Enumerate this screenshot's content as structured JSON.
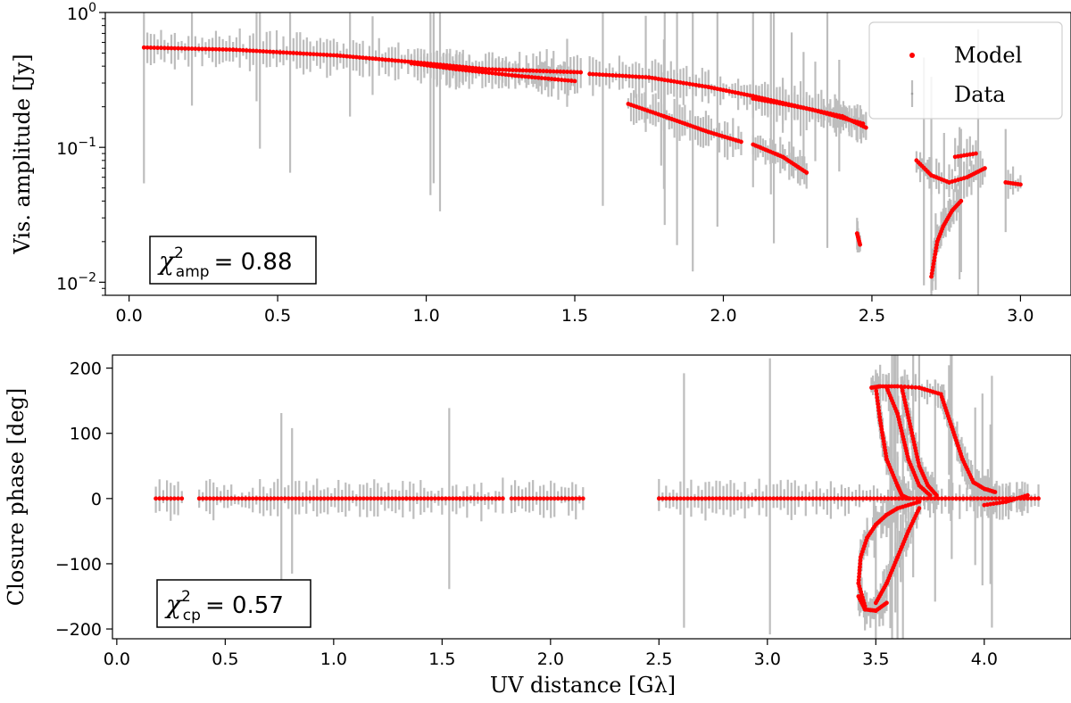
{
  "chart_data": [
    {
      "type": "scatter",
      "panel": "top",
      "xlabel": "",
      "ylabel": "Vis. amplitude [Jy]",
      "yscale": "log",
      "xlim": [
        -0.08,
        3.17
      ],
      "ylim": [
        0.008,
        1.0
      ],
      "xticks": [
        0.0,
        0.5,
        1.0,
        1.5,
        2.0,
        2.5,
        3.0
      ],
      "xtick_labels": [
        "0.0",
        "0.5",
        "1.0",
        "1.5",
        "2.0",
        "2.5",
        "3.0"
      ],
      "ytick_labels": [
        {
          "value": 1.0,
          "base": "10",
          "exp": "0"
        },
        {
          "value": 0.1,
          "base": "10",
          "exp": "−1"
        },
        {
          "value": 0.01,
          "base": "10",
          "exp": "−2"
        }
      ],
      "legend": {
        "placement": "top-right",
        "entries": [
          "Model",
          "Data"
        ]
      },
      "annotation": {
        "symbol": "χ",
        "sup": "2",
        "sub": "amp",
        "value": "= 0.88"
      },
      "series": [
        {
          "name": "Model",
          "color": "#ff0000",
          "segments": [
            {
              "x": [
                0.05,
                0.35,
                0.7,
                0.95,
                1.2,
                1.52
              ],
              "y": [
                0.55,
                0.53,
                0.48,
                0.43,
                0.38,
                0.36
              ]
            },
            {
              "x": [
                0.95,
                1.1,
                1.3,
                1.5
              ],
              "y": [
                0.42,
                0.38,
                0.34,
                0.31
              ]
            },
            {
              "x": [
                1.55,
                1.75,
                1.95,
                2.1,
                2.3,
                2.47
              ],
              "y": [
                0.35,
                0.33,
                0.28,
                0.24,
                0.19,
                0.15
              ]
            },
            {
              "x": [
                2.1,
                2.2,
                2.3,
                2.4,
                2.48
              ],
              "y": [
                0.23,
                0.21,
                0.19,
                0.17,
                0.14
              ]
            },
            {
              "x": [
                1.68,
                1.8,
                1.95,
                2.06
              ],
              "y": [
                0.21,
                0.17,
                0.13,
                0.11
              ]
            },
            {
              "x": [
                2.1,
                2.2,
                2.28
              ],
              "y": [
                0.105,
                0.085,
                0.065
              ]
            },
            {
              "x": [
                2.7,
                2.72,
                2.74,
                2.77,
                2.8
              ],
              "y": [
                0.011,
                0.02,
                0.026,
                0.034,
                0.04
              ]
            },
            {
              "x": [
                2.65,
                2.7,
                2.76,
                2.82,
                2.88
              ],
              "y": [
                0.08,
                0.062,
                0.055,
                0.06,
                0.07
              ]
            },
            {
              "x": [
                2.78,
                2.85
              ],
              "y": [
                0.085,
                0.09
              ]
            },
            {
              "x": [
                2.95,
                3.0
              ],
              "y": [
                0.055,
                0.053
              ]
            },
            {
              "x": [
                2.45,
                2.46
              ],
              "y": [
                0.023,
                0.019
              ]
            }
          ]
        },
        {
          "name": "Data",
          "color": "#bdbdbd",
          "note": "grey error bars around model points"
        }
      ]
    },
    {
      "type": "scatter",
      "panel": "bottom",
      "xlabel": "UV distance [Gλ]",
      "ylabel": "Closure phase [deg]",
      "xlim": [
        -0.02,
        4.4
      ],
      "ylim": [
        -215,
        220
      ],
      "xticks": [
        0.0,
        0.5,
        1.0,
        1.5,
        2.0,
        2.5,
        3.0,
        3.5,
        4.0
      ],
      "xtick_labels": [
        "0.0",
        "0.5",
        "1.0",
        "1.5",
        "2.0",
        "2.5",
        "3.0",
        "3.5",
        "4.0"
      ],
      "yticks": [
        200,
        100,
        0,
        -100,
        -200
      ],
      "ytick_labels": [
        "200",
        "100",
        "0",
        "−100",
        "−200"
      ],
      "annotation": {
        "symbol": "χ",
        "sup": "2",
        "sub": "cp",
        "value": "= 0.57"
      },
      "series": [
        {
          "name": "Model",
          "color": "#ff0000",
          "segments": [
            {
              "x": [
                0.18,
                0.3
              ],
              "y": [
                0,
                0
              ]
            },
            {
              "x": [
                0.38,
                1.78
              ],
              "y": [
                0,
                0
              ]
            },
            {
              "x": [
                1.82,
                2.15
              ],
              "y": [
                0,
                0
              ]
            },
            {
              "x": [
                2.5,
                4.25
              ],
              "y": [
                0,
                0
              ]
            },
            {
              "x": [
                3.48,
                3.52,
                3.6,
                3.7,
                3.8,
                3.85,
                3.9,
                3.95,
                4.0,
                4.05
              ],
              "y": [
                170,
                172,
                172,
                170,
                160,
                110,
                60,
                25,
                15,
                10
              ]
            },
            {
              "x": [
                3.5,
                3.52,
                3.55,
                3.6,
                3.62,
                3.65
              ],
              "y": [
                170,
                120,
                60,
                20,
                5,
                0
              ]
            },
            {
              "x": [
                3.55,
                3.6,
                3.65,
                3.7,
                3.75
              ],
              "y": [
                170,
                130,
                60,
                20,
                5
              ]
            },
            {
              "x": [
                3.62,
                3.66,
                3.7,
                3.74,
                3.78
              ],
              "y": [
                170,
                110,
                50,
                20,
                5
              ]
            },
            {
              "x": [
                3.45,
                3.42,
                3.43,
                3.46,
                3.5,
                3.55,
                3.6,
                3.7
              ],
              "y": [
                -165,
                -130,
                -90,
                -60,
                -40,
                -25,
                -15,
                -5
              ]
            },
            {
              "x": [
                3.42,
                3.45,
                3.5,
                3.55
              ],
              "y": [
                -150,
                -170,
                -172,
                -160
              ]
            },
            {
              "x": [
                3.5,
                3.55,
                3.6,
                3.65,
                3.7
              ],
              "y": [
                -160,
                -130,
                -90,
                -50,
                -15
              ]
            },
            {
              "x": [
                4.0,
                4.1,
                4.2
              ],
              "y": [
                -10,
                -5,
                5
              ]
            }
          ]
        },
        {
          "name": "Data",
          "color": "#bdbdbd",
          "note": "grey error bars around model points"
        }
      ]
    }
  ],
  "colors": {
    "model": "#ff0000",
    "data": "#bdbdbd",
    "axis": "#000000"
  }
}
